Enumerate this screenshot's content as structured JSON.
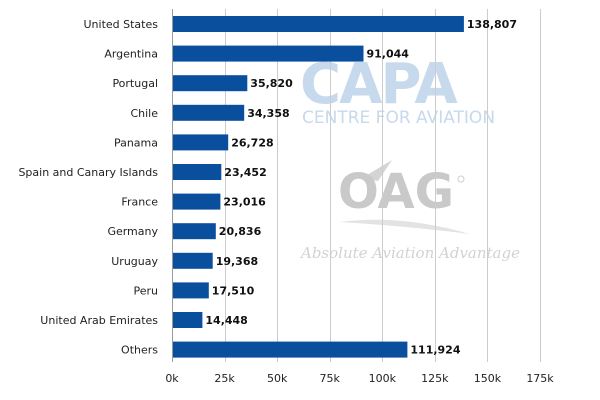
{
  "chart_data": {
    "type": "bar",
    "orientation": "horizontal",
    "categories": [
      "United States",
      "Argentina",
      "Portugal",
      "Chile",
      "Panama",
      "Spain and Canary Islands",
      "France",
      "Germany",
      "Uruguay",
      "Peru",
      "United Arab Emirates",
      "Others"
    ],
    "values": [
      138807,
      91044,
      35820,
      34358,
      26728,
      23452,
      23016,
      20836,
      19368,
      17510,
      14448,
      111924
    ],
    "value_labels": [
      "138,807",
      "91,044",
      "35,820",
      "34,358",
      "26,728",
      "23,452",
      "23,016",
      "20,836",
      "19,368",
      "17,510",
      "14,448",
      "111,924"
    ],
    "xlim": [
      0,
      175000
    ],
    "xticks": [
      0,
      25000,
      50000,
      75000,
      100000,
      125000,
      150000,
      175000
    ],
    "xtick_labels": [
      "0k",
      "25k",
      "50k",
      "75k",
      "100k",
      "125k",
      "150k",
      "175k"
    ],
    "grid": "vertical",
    "legend": "none",
    "bar_color": "#0a4f9e"
  },
  "watermarks": {
    "capa_title": "CAPA",
    "capa_subtitle": "CENTRE FOR AVIATION",
    "oag_title": "OAG",
    "oag_tagline": "Absolute Aviation Advantage",
    "capa_color": "#c7d9ec",
    "oag_color": "#c9c9c9"
  }
}
